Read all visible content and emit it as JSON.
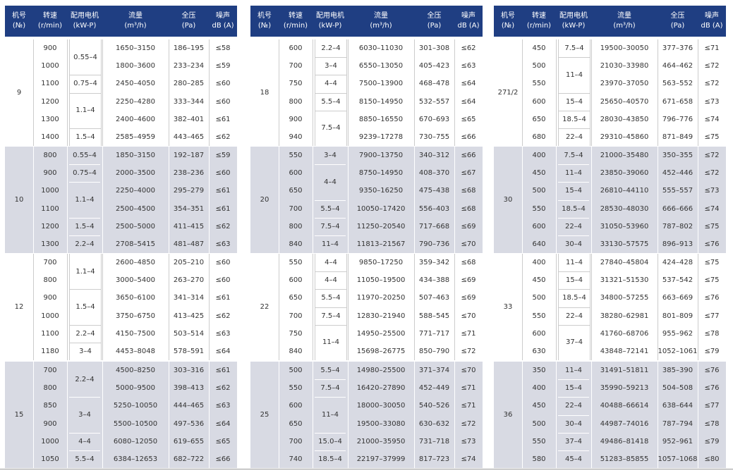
{
  "headers": [
    [
      "机号",
      "(№)"
    ],
    [
      "转速",
      "(r/min)"
    ],
    [
      "配用电机",
      "(kW-P)"
    ],
    [
      "流量",
      "(m³/h)"
    ],
    [
      "全压",
      "(Pa)"
    ],
    [
      "噪声",
      "dB (A)"
    ]
  ],
  "panels": [
    {
      "groups": [
        {
          "no": "9",
          "rows": [
            [
              "900",
              "1650–3150",
              "186–195",
              "≤58"
            ],
            [
              "1000",
              "1800–3600",
              "233–234",
              "≤59"
            ],
            [
              "1100",
              "2450–4050",
              "280–285",
              "≤60"
            ],
            [
              "1200",
              "2250–4280",
              "333–344",
              "≤60"
            ],
            [
              "1300",
              "2400–4600",
              "382–401",
              "≤61"
            ],
            [
              "1400",
              "2585–4959",
              "443–465",
              "≤62"
            ]
          ],
          "motors": [
            [
              "0.55–4",
              2
            ],
            [
              "0.75–4",
              1
            ],
            [
              "1.1–4",
              2
            ],
            [
              "1.5–4",
              1
            ]
          ]
        },
        {
          "no": "10",
          "rows": [
            [
              "800",
              "1850–3150",
              "192–187",
              "≤59"
            ],
            [
              "900",
              "2000–3500",
              "238–236",
              "≤60"
            ],
            [
              "1000",
              "2250–4000",
              "295–279",
              "≤61"
            ],
            [
              "1100",
              "2500–4500",
              "354–351",
              "≤61"
            ],
            [
              "1200",
              "2500–5000",
              "411–415",
              "≤62"
            ],
            [
              "1300",
              "2708–5415",
              "481–487",
              "≤63"
            ]
          ],
          "motors": [
            [
              "0.55–4",
              1
            ],
            [
              "0.75–4",
              1
            ],
            [
              "1.1–4",
              2
            ],
            [
              "1.5–4",
              1
            ],
            [
              "2.2–4",
              1
            ]
          ]
        },
        {
          "no": "12",
          "rows": [
            [
              "700",
              "2600–4850",
              "205–210",
              "≤60"
            ],
            [
              "800",
              "3000–5400",
              "263–270",
              "≤60"
            ],
            [
              "900",
              "3650–6100",
              "341–314",
              "≤61"
            ],
            [
              "1000",
              "3750–6750",
              "413–425",
              "≤62"
            ],
            [
              "1100",
              "4150–7500",
              "503–514",
              "≤63"
            ],
            [
              "1180",
              "4453–8048",
              "578–591",
              "≤64"
            ]
          ],
          "motors": [
            [
              "1.1–4",
              2
            ],
            [
              "1.5–4",
              2
            ],
            [
              "2.2–4",
              1
            ],
            [
              "3–4",
              1
            ]
          ]
        },
        {
          "no": "15",
          "rows": [
            [
              "700",
              "4500–8250",
              "303–316",
              "≤61"
            ],
            [
              "800",
              "5000–9500",
              "398–413",
              "≤62"
            ],
            [
              "850",
              "5250–10050",
              "444–465",
              "≤63"
            ],
            [
              "900",
              "5500–10500",
              "497–536",
              "≤64"
            ],
            [
              "1000",
              "6080–12050",
              "619–655",
              "≤65"
            ],
            [
              "1050",
              "6384–12653",
              "682–722",
              "≤66"
            ]
          ],
          "motors": [
            [
              "2.2–4",
              2
            ],
            [
              "3–4",
              2
            ],
            [
              "4–4",
              1
            ],
            [
              "5.5–4",
              1
            ]
          ]
        }
      ]
    },
    {
      "groups": [
        {
          "no": "18",
          "rows": [
            [
              "600",
              "6030–11030",
              "301–308",
              "≤62"
            ],
            [
              "700",
              "6550–13050",
              "405–423",
              "≤63"
            ],
            [
              "750",
              "7500–13900",
              "468–478",
              "≤64"
            ],
            [
              "800",
              "8150–14950",
              "532–557",
              "≤64"
            ],
            [
              "900",
              "8850–16550",
              "670–693",
              "≤65"
            ],
            [
              "940",
              "9239–17278",
              "730–755",
              "≤66"
            ]
          ],
          "motors": [
            [
              "2.2–4",
              1
            ],
            [
              "3–4",
              1
            ],
            [
              "4–4",
              1
            ],
            [
              "5.5–4",
              1
            ],
            [
              "7.5–4",
              2
            ]
          ]
        },
        {
          "no": "20",
          "rows": [
            [
              "550",
              "7900–13750",
              "340–312",
              "≤66"
            ],
            [
              "600",
              "8750–14950",
              "408–370",
              "≤67"
            ],
            [
              "650",
              "9350–16250",
              "475–438",
              "≤68"
            ],
            [
              "700",
              "10050–17420",
              "556–403",
              "≤68"
            ],
            [
              "800",
              "11250–20540",
              "717–668",
              "≤69"
            ],
            [
              "840",
              "11813–21567",
              "790–736",
              "≤70"
            ]
          ],
          "motors": [
            [
              "3–4",
              1
            ],
            [
              "4–4",
              2
            ],
            [
              "5.5–4",
              1
            ],
            [
              "7.5–4",
              1
            ],
            [
              "11–4",
              1
            ]
          ]
        },
        {
          "no": "22",
          "rows": [
            [
              "550",
              "9850–17250",
              "359–342",
              "≤68"
            ],
            [
              "600",
              "11050–19500",
              "434–388",
              "≤69"
            ],
            [
              "650",
              "11970–20250",
              "507–463",
              "≤69"
            ],
            [
              "700",
              "12830–21940",
              "588–545",
              "≤70"
            ],
            [
              "750",
              "14950–25500",
              "771–717",
              "≤71"
            ],
            [
              "840",
              "15698–26775",
              "850–790",
              "≤72"
            ]
          ],
          "motors": [
            [
              "4–4",
              1
            ],
            [
              "4–4",
              1
            ],
            [
              "5.5–4",
              1
            ],
            [
              "7.5–4",
              1
            ],
            [
              "11–4",
              2
            ]
          ]
        },
        {
          "no": "25",
          "rows": [
            [
              "500",
              "14980–25500",
              "371–374",
              "≤70"
            ],
            [
              "550",
              "16420–27890",
              "452–449",
              "≤71"
            ],
            [
              "600",
              "18000–30050",
              "540–526",
              "≤71"
            ],
            [
              "650",
              "19500–33080",
              "630–632",
              "≤72"
            ],
            [
              "700",
              "21000–35950",
              "731–718",
              "≤73"
            ],
            [
              "740",
              "22197–37999",
              "817–723",
              "≤74"
            ]
          ],
          "motors": [
            [
              "5.5–4",
              1
            ],
            [
              "7.5–4",
              1
            ],
            [
              "11–4",
              2
            ],
            [
              "15.0–4",
              1
            ],
            [
              "18.5–4",
              1
            ]
          ]
        }
      ]
    },
    {
      "groups": [
        {
          "no": "271/2",
          "rows": [
            [
              "450",
              "19500–30050",
              "377–376",
              "≤71"
            ],
            [
              "500",
              "21030–33980",
              "464–462",
              "≤72"
            ],
            [
              "550",
              "23970–37050",
              "563–552",
              "≤72"
            ],
            [
              "600",
              "25650–40570",
              "671–658",
              "≤73"
            ],
            [
              "650",
              "28030–43850",
              "796–776",
              "≤74"
            ],
            [
              "680",
              "29310–45860",
              "871–849",
              "≤75"
            ]
          ],
          "motors": [
            [
              "7.5–4",
              1
            ],
            [
              "11–4",
              2
            ],
            [
              "15–4",
              1
            ],
            [
              "18.5–4",
              1
            ],
            [
              "22–4",
              1
            ]
          ]
        },
        {
          "no": "30",
          "rows": [
            [
              "400",
              "21000–35480",
              "350–355",
              "≤72"
            ],
            [
              "450",
              "23850–39060",
              "452–446",
              "≤72"
            ],
            [
              "500",
              "26810–44110",
              "555–557",
              "≤73"
            ],
            [
              "550",
              "28530–48030",
              "666–666",
              "≤74"
            ],
            [
              "600",
              "31050–53960",
              "787–802",
              "≤75"
            ],
            [
              "640",
              "33130–57575",
              "896–913",
              "≤76"
            ]
          ],
          "motors": [
            [
              "7.5–4",
              1
            ],
            [
              "11–4",
              1
            ],
            [
              "15–4",
              1
            ],
            [
              "18.5–4",
              1
            ],
            [
              "22–4",
              1
            ],
            [
              "30–4",
              1
            ]
          ]
        },
        {
          "no": "33",
          "rows": [
            [
              "400",
              "27840–45804",
              "424–428",
              "≤75"
            ],
            [
              "450",
              "31321–51530",
              "537–542",
              "≤75"
            ],
            [
              "500",
              "34800–57255",
              "663–669",
              "≤76"
            ],
            [
              "550",
              "38280–62981",
              "801–809",
              "≤77"
            ],
            [
              "600",
              "41760–68706",
              "955–962",
              "≤78"
            ],
            [
              "630",
              "43848–72141",
              "1052–1061",
              "≤79"
            ]
          ],
          "motors": [
            [
              "11–4",
              1
            ],
            [
              "15–4",
              1
            ],
            [
              "18.5–4",
              1
            ],
            [
              "22–4",
              1
            ],
            [
              "37–4",
              2
            ]
          ]
        },
        {
          "no": "36",
          "rows": [
            [
              "350",
              "31491–51811",
              "385–390",
              "≤76"
            ],
            [
              "400",
              "35990–59213",
              "504–508",
              "≤76"
            ],
            [
              "450",
              "40488–66614",
              "638–644",
              "≤77"
            ],
            [
              "500",
              "44987–74016",
              "787–794",
              "≤78"
            ],
            [
              "550",
              "49486–81418",
              "952–961",
              "≤79"
            ],
            [
              "580",
              "51283–85855",
              "1057–1068",
              "≤80"
            ]
          ],
          "motors": [
            [
              "11–4",
              1
            ],
            [
              "15–4",
              1
            ],
            [
              "22–4",
              1
            ],
            [
              "30–4",
              1
            ],
            [
              "37–4",
              1
            ],
            [
              "45–4",
              1
            ]
          ]
        }
      ]
    }
  ]
}
